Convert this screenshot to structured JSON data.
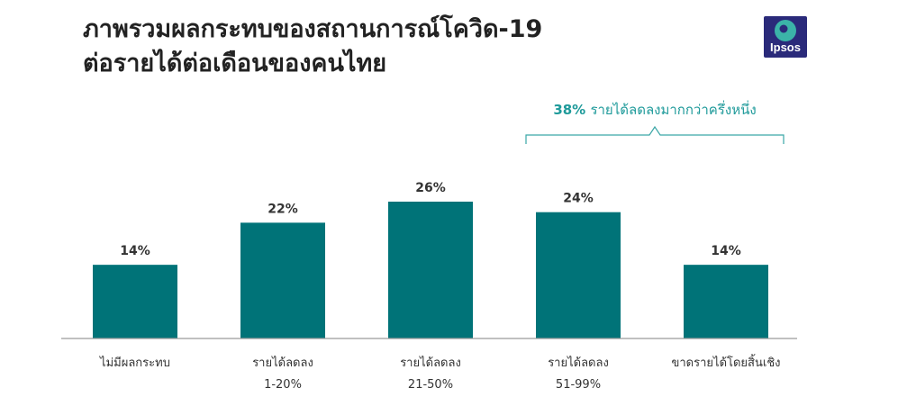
{
  "title": {
    "line1": "ภาพรวมผลกระทบของสถานการณ์โควิด-19",
    "line2": "ต่อรายได้ต่อเดือนของคนไทย"
  },
  "logo": {
    "text": "Ipsos",
    "color": "#2a2a7a",
    "accent": "#3bb3a8"
  },
  "callout": {
    "percent": "38%",
    "text": "รายได้ลดลงมากกว่าครึ่งหนึ่ง",
    "color": "#1e9a9a"
  },
  "chart_data": {
    "type": "bar",
    "categories": [
      [
        "ไม่มีผลกระทบ"
      ],
      [
        "รายได้ลดลง",
        "1-20%"
      ],
      [
        "รายได้ลดลง",
        "21-50%"
      ],
      [
        "รายได้ลดลง",
        "51-99%"
      ],
      [
        "ขาดรายได้โดยสิ้นเชิง"
      ]
    ],
    "values": [
      14,
      22,
      26,
      24,
      14
    ],
    "value_labels": [
      "14%",
      "22%",
      "26%",
      "24%",
      "14%"
    ],
    "bar_color": "#007378",
    "ylim": [
      0,
      26
    ],
    "grid": false,
    "legend": "none"
  }
}
